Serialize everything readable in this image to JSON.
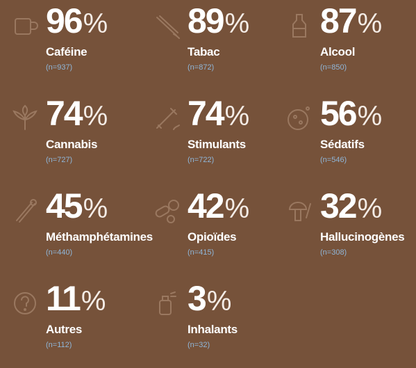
{
  "items": [
    {
      "value": "96",
      "unit": "%",
      "label": "Caféine",
      "n": "(n=937)"
    },
    {
      "value": "89",
      "unit": "%",
      "label": "Tabac",
      "n": "(n=872)"
    },
    {
      "value": "87",
      "unit": "%",
      "label": "Alcool",
      "n": "(n=850)"
    },
    {
      "value": "74",
      "unit": "%",
      "label": "Cannabis",
      "n": "(n=727)"
    },
    {
      "value": "74",
      "unit": "%",
      "label": "Stimulants",
      "n": "(n=722)"
    },
    {
      "value": "56",
      "unit": "%",
      "label": "Sédatifs",
      "n": "(n=546)"
    },
    {
      "value": "45",
      "unit": "%",
      "label": "Méthamphétamines",
      "n": "(n=440)"
    },
    {
      "value": "42",
      "unit": "%",
      "label": "Opioïdes",
      "n": "(n=415)"
    },
    {
      "value": "32",
      "unit": "%",
      "label": "Hallucinogènes",
      "n": "(n=308)"
    },
    {
      "value": "11",
      "unit": "%",
      "label": "Autres",
      "n": "(n=112)"
    },
    {
      "value": "3",
      "unit": "%",
      "label": "Inhalants",
      "n": "(n=32)"
    }
  ]
}
